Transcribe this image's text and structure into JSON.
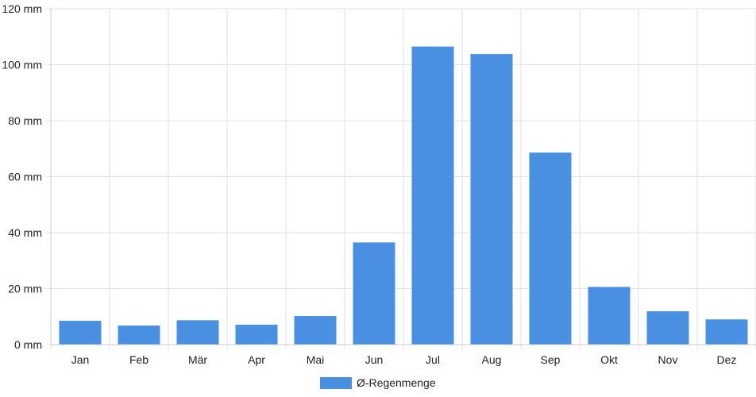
{
  "chart_data": {
    "type": "bar",
    "categories": [
      "Jan",
      "Feb",
      "Mär",
      "Apr",
      "Mai",
      "Jun",
      "Jul",
      "Aug",
      "Sep",
      "Okt",
      "Nov",
      "Dez"
    ],
    "series": [
      {
        "name": "Ø-Regenmenge",
        "values": [
          8.5,
          6.8,
          8.7,
          7.1,
          10.2,
          36.5,
          106.5,
          103.8,
          68.6,
          20.6,
          11.9,
          9.0
        ],
        "color": "#4a90e2"
      }
    ],
    "y_ticks": [
      "0 mm",
      "20 mm",
      "40 mm",
      "60 mm",
      "80 mm",
      "100 mm",
      "120 mm"
    ],
    "ylim": [
      0,
      120
    ],
    "y_step": 20,
    "grid": true,
    "legend_position": "bottom-center"
  }
}
